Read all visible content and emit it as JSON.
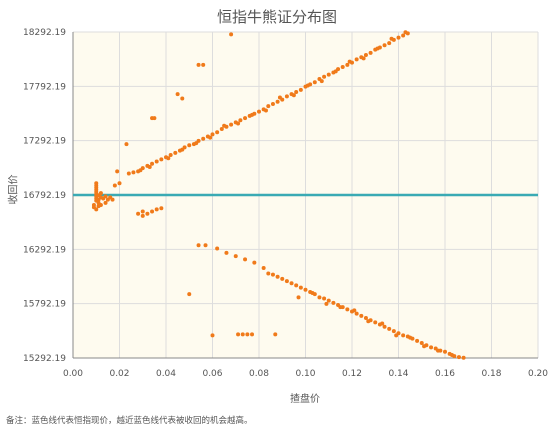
{
  "chart_data": {
    "type": "scatter",
    "title": "恒指牛熊证分布图",
    "xlabel": "揸盘价",
    "ylabel": "收回价",
    "xlim": [
      0,
      0.2
    ],
    "ylim": [
      15292.19,
      18292.19
    ],
    "x_ticks": [
      "0.00",
      "0.02",
      "0.04",
      "0.06",
      "0.08",
      "0.10",
      "0.12",
      "0.14",
      "0.16",
      "0.18",
      "0.20"
    ],
    "y_ticks": [
      "15292.19",
      "15792.19",
      "16292.19",
      "16792.19",
      "17292.19",
      "17792.19",
      "18292.19"
    ],
    "reference_line": {
      "y": 16792.19
    },
    "grid": true,
    "colors": {
      "points": "#f07a1a",
      "reference_line": "#3aaab4",
      "plot_bg": "#fefbef",
      "grid": "#dddddd"
    },
    "clusters": [
      {
        "name": "bull_cluster",
        "points": [
          [
            0.01,
            16740
          ],
          [
            0.01,
            16760
          ],
          [
            0.01,
            16780
          ],
          [
            0.01,
            16800
          ],
          [
            0.01,
            16820
          ],
          [
            0.01,
            16840
          ],
          [
            0.01,
            16860
          ],
          [
            0.01,
            16880
          ],
          [
            0.01,
            16900
          ],
          [
            0.011,
            16720
          ],
          [
            0.011,
            16750
          ],
          [
            0.011,
            16790
          ],
          [
            0.012,
            16770
          ],
          [
            0.012,
            16810
          ],
          [
            0.013,
            16760
          ],
          [
            0.014,
            16780
          ],
          [
            0.015,
            16750
          ],
          [
            0.016,
            16770
          ],
          [
            0.009,
            16700
          ],
          [
            0.009,
            16680
          ],
          [
            0.012,
            16700
          ],
          [
            0.01,
            16660
          ],
          [
            0.011,
            16690
          ],
          [
            0.014,
            16720
          ],
          [
            0.017,
            16750
          ]
        ]
      },
      {
        "name": "upper_trend",
        "points": [
          [
            0.02,
            16900
          ],
          [
            0.024,
            16990
          ],
          [
            0.026,
            17000
          ],
          [
            0.028,
            17010
          ],
          [
            0.03,
            17040
          ],
          [
            0.032,
            17060
          ],
          [
            0.034,
            17080
          ],
          [
            0.036,
            17100
          ],
          [
            0.038,
            17120
          ],
          [
            0.04,
            17140
          ],
          [
            0.042,
            17160
          ],
          [
            0.044,
            17180
          ],
          [
            0.046,
            17200
          ],
          [
            0.048,
            17230
          ],
          [
            0.05,
            17250
          ],
          [
            0.052,
            17260
          ],
          [
            0.054,
            17290
          ],
          [
            0.056,
            17310
          ],
          [
            0.058,
            17330
          ],
          [
            0.06,
            17350
          ],
          [
            0.062,
            17370
          ],
          [
            0.064,
            17400
          ],
          [
            0.066,
            17420
          ],
          [
            0.068,
            17440
          ],
          [
            0.07,
            17460
          ],
          [
            0.072,
            17480
          ],
          [
            0.074,
            17500
          ],
          [
            0.076,
            17520
          ],
          [
            0.078,
            17540
          ],
          [
            0.08,
            17560
          ],
          [
            0.082,
            17580
          ],
          [
            0.084,
            17610
          ],
          [
            0.086,
            17630
          ],
          [
            0.088,
            17650
          ],
          [
            0.09,
            17670
          ],
          [
            0.092,
            17700
          ],
          [
            0.094,
            17720
          ],
          [
            0.096,
            17740
          ],
          [
            0.098,
            17760
          ],
          [
            0.1,
            17790
          ],
          [
            0.102,
            17810
          ],
          [
            0.104,
            17830
          ],
          [
            0.106,
            17860
          ],
          [
            0.108,
            17880
          ],
          [
            0.11,
            17900
          ],
          [
            0.112,
            17920
          ],
          [
            0.114,
            17950
          ],
          [
            0.116,
            17970
          ],
          [
            0.118,
            17990
          ],
          [
            0.12,
            18010
          ],
          [
            0.122,
            18040
          ],
          [
            0.124,
            18060
          ],
          [
            0.126,
            18080
          ],
          [
            0.128,
            18100
          ],
          [
            0.13,
            18130
          ],
          [
            0.132,
            18150
          ],
          [
            0.134,
            18170
          ],
          [
            0.136,
            18190
          ],
          [
            0.138,
            18220
          ],
          [
            0.14,
            18240
          ],
          [
            0.142,
            18260
          ],
          [
            0.144,
            18280
          ],
          [
            0.029,
            17020
          ],
          [
            0.033,
            17050
          ],
          [
            0.041,
            17130
          ],
          [
            0.047,
            17210
          ],
          [
            0.053,
            17270
          ],
          [
            0.059,
            17320
          ],
          [
            0.065,
            17430
          ],
          [
            0.071,
            17450
          ],
          [
            0.077,
            17530
          ],
          [
            0.083,
            17570
          ],
          [
            0.089,
            17690
          ],
          [
            0.095,
            17710
          ],
          [
            0.101,
            17800
          ],
          [
            0.107,
            17840
          ],
          [
            0.113,
            17930
          ],
          [
            0.119,
            18020
          ],
          [
            0.125,
            18050
          ],
          [
            0.131,
            18140
          ],
          [
            0.137,
            18230
          ],
          [
            0.143,
            18290
          ]
        ]
      },
      {
        "name": "outliers",
        "points": [
          [
            0.068,
            18270
          ],
          [
            0.054,
            17990
          ],
          [
            0.056,
            17990
          ],
          [
            0.045,
            17720
          ],
          [
            0.047,
            17680
          ],
          [
            0.034,
            17500
          ],
          [
            0.035,
            17500
          ],
          [
            0.023,
            17260
          ],
          [
            0.019,
            17010
          ],
          [
            0.018,
            16880
          ],
          [
            0.03,
            16640
          ],
          [
            0.032,
            16620
          ],
          [
            0.034,
            16640
          ],
          [
            0.036,
            16660
          ],
          [
            0.038,
            16670
          ],
          [
            0.028,
            16620
          ],
          [
            0.03,
            16600
          ]
        ]
      },
      {
        "name": "lower_trend",
        "points": [
          [
            0.054,
            16330
          ],
          [
            0.057,
            16330
          ],
          [
            0.062,
            16300
          ],
          [
            0.066,
            16260
          ],
          [
            0.07,
            16230
          ],
          [
            0.074,
            16200
          ],
          [
            0.078,
            16170
          ],
          [
            0.082,
            16120
          ],
          [
            0.084,
            16070
          ],
          [
            0.086,
            16060
          ],
          [
            0.088,
            16040
          ],
          [
            0.09,
            16020
          ],
          [
            0.092,
            16000
          ],
          [
            0.094,
            15980
          ],
          [
            0.096,
            15960
          ],
          [
            0.098,
            15940
          ],
          [
            0.1,
            15920
          ],
          [
            0.102,
            15900
          ],
          [
            0.104,
            15880
          ],
          [
            0.106,
            15850
          ],
          [
            0.108,
            15840
          ],
          [
            0.11,
            15820
          ],
          [
            0.112,
            15800
          ],
          [
            0.114,
            15780
          ],
          [
            0.116,
            15760
          ],
          [
            0.118,
            15740
          ],
          [
            0.12,
            15720
          ],
          [
            0.122,
            15700
          ],
          [
            0.124,
            15680
          ],
          [
            0.126,
            15660
          ],
          [
            0.128,
            15640
          ],
          [
            0.13,
            15620
          ],
          [
            0.132,
            15600
          ],
          [
            0.134,
            15580
          ],
          [
            0.136,
            15560
          ],
          [
            0.138,
            15540
          ],
          [
            0.14,
            15520
          ],
          [
            0.142,
            15500
          ],
          [
            0.144,
            15490
          ],
          [
            0.146,
            15470
          ],
          [
            0.148,
            15450
          ],
          [
            0.15,
            15430
          ],
          [
            0.152,
            15410
          ],
          [
            0.154,
            15390
          ],
          [
            0.156,
            15380
          ],
          [
            0.158,
            15360
          ],
          [
            0.16,
            15350
          ],
          [
            0.162,
            15330
          ],
          [
            0.164,
            15310
          ],
          [
            0.166,
            15300
          ],
          [
            0.168,
            15295
          ],
          [
            0.05,
            15880
          ],
          [
            0.06,
            15500
          ],
          [
            0.071,
            15510
          ],
          [
            0.073,
            15510
          ],
          [
            0.075,
            15510
          ],
          [
            0.077,
            15510
          ],
          [
            0.087,
            15510
          ],
          [
            0.097,
            15850
          ],
          [
            0.103,
            15890
          ],
          [
            0.109,
            15790
          ],
          [
            0.115,
            15760
          ],
          [
            0.121,
            15730
          ],
          [
            0.127,
            15630
          ],
          [
            0.133,
            15610
          ],
          [
            0.139,
            15500
          ],
          [
            0.145,
            15480
          ],
          [
            0.151,
            15400
          ],
          [
            0.157,
            15360
          ],
          [
            0.163,
            15320
          ]
        ]
      }
    ]
  },
  "note": "备注：蓝色线代表恒指现价，越近蓝色线代表被收回的机会越高。"
}
